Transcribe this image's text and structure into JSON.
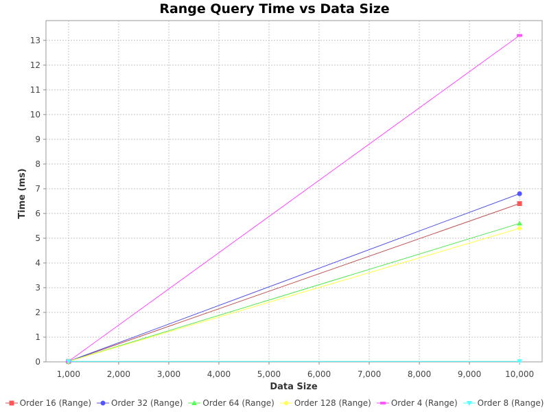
{
  "chart_data": {
    "type": "line",
    "title": "Range Query Time vs Data Size",
    "xlabel": "Data Size",
    "ylabel": "Time (ms)",
    "x": [
      1000,
      10000
    ],
    "xlim": [
      550,
      10450
    ],
    "ylim": [
      0,
      13.8
    ],
    "x_ticks": [
      1000,
      2000,
      3000,
      4000,
      5000,
      6000,
      7000,
      8000,
      9000,
      10000
    ],
    "x_tick_labels": [
      "1,000",
      "2,000",
      "3,000",
      "4,000",
      "5,000",
      "6,000",
      "7,000",
      "8,000",
      "9,000",
      "10,000"
    ],
    "y_ticks": [
      0,
      1,
      2,
      3,
      4,
      5,
      6,
      7,
      8,
      9,
      10,
      11,
      12,
      13
    ],
    "grid": true,
    "legend_position": "bottom",
    "series": [
      {
        "name": "Order 16 (Range)",
        "values": [
          0.02,
          6.4
        ],
        "color": "#ff5555",
        "marker": "square"
      },
      {
        "name": "Order 32 (Range)",
        "values": [
          0.02,
          6.8
        ],
        "color": "#5555ff",
        "marker": "circle"
      },
      {
        "name": "Order 64 (Range)",
        "values": [
          0.02,
          5.6
        ],
        "color": "#55ff55",
        "marker": "triangle-up"
      },
      {
        "name": "Order 128 (Range)",
        "values": [
          0.02,
          5.4
        ],
        "color": "#ffff55",
        "marker": "diamond"
      },
      {
        "name": "Order 4 (Range)",
        "values": [
          0.02,
          13.2
        ],
        "color": "#ff55ff",
        "marker": "rect"
      },
      {
        "name": "Order 8 (Range)",
        "values": [
          0.02,
          0.02
        ],
        "color": "#55ffff",
        "marker": "triangle-down"
      }
    ]
  }
}
